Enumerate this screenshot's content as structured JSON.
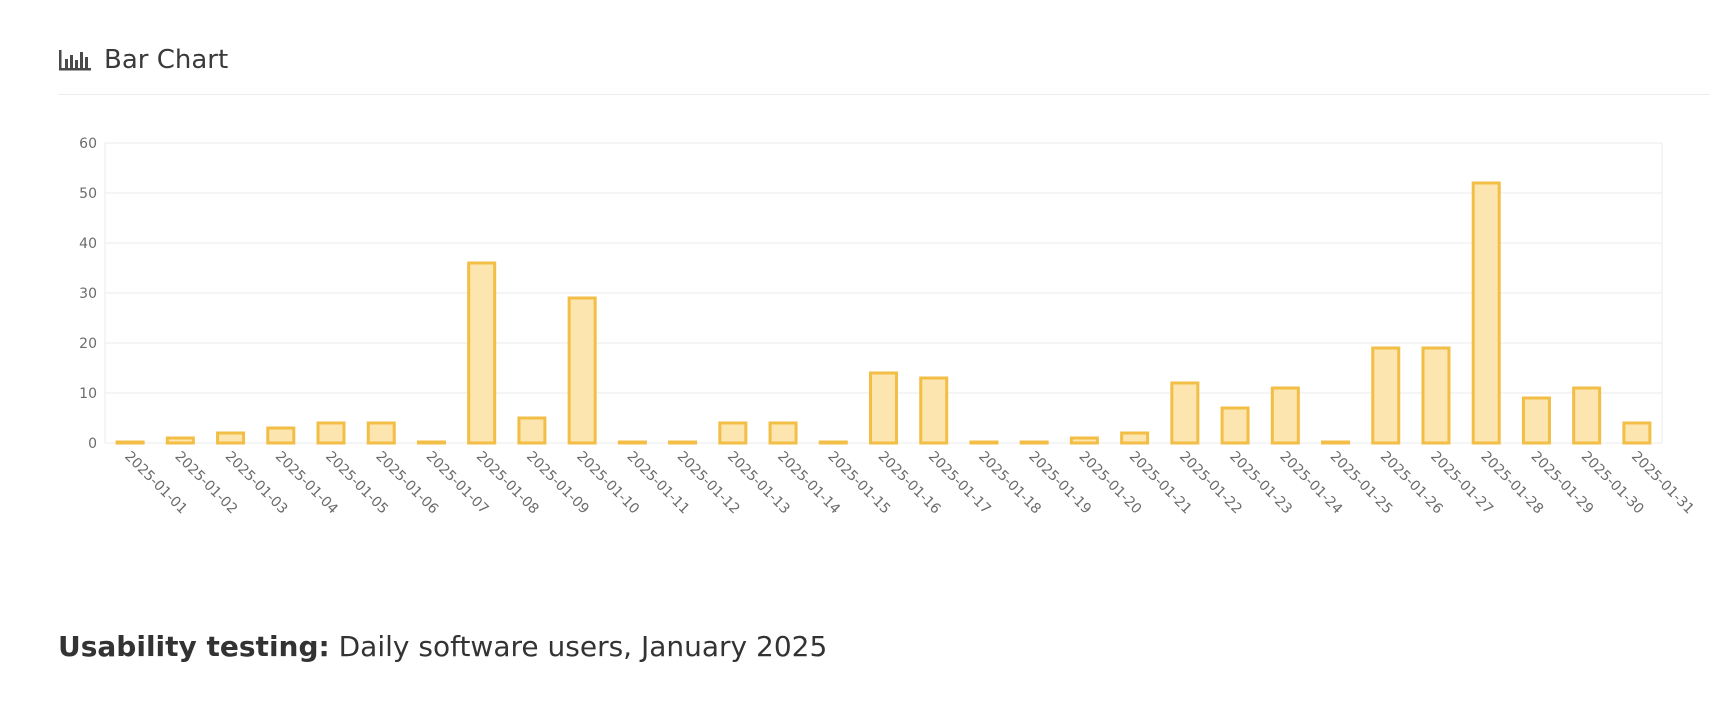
{
  "header": {
    "title": "Bar Chart",
    "icon": "bar-chart-icon"
  },
  "caption": {
    "bold": "Usability testing:",
    "text": " Daily software users, January 2025"
  },
  "colors": {
    "bar_fill": "#fce5ae",
    "bar_stroke": "#f2be45",
    "grid": "#ebebeb",
    "tick_text": "#6b6b6b"
  },
  "chart_data": {
    "type": "bar",
    "title": "",
    "xlabel": "",
    "ylabel": "",
    "ylim": [
      0,
      60
    ],
    "yticks": [
      0,
      10,
      20,
      30,
      40,
      50,
      60
    ],
    "grid": true,
    "categories": [
      "2025-01-01",
      "2025-01-02",
      "2025-01-03",
      "2025-01-04",
      "2025-01-05",
      "2025-01-06",
      "2025-01-07",
      "2025-01-08",
      "2025-01-09",
      "2025-01-10",
      "2025-01-11",
      "2025-01-12",
      "2025-01-13",
      "2025-01-14",
      "2025-01-15",
      "2025-01-16",
      "2025-01-17",
      "2025-01-18",
      "2025-01-19",
      "2025-01-20",
      "2025-01-21",
      "2025-01-22",
      "2025-01-23",
      "2025-01-24",
      "2025-01-25",
      "2025-01-26",
      "2025-01-27",
      "2025-01-28",
      "2025-01-29",
      "2025-01-30",
      "2025-01-31"
    ],
    "values": [
      0,
      1,
      2,
      3,
      4,
      4,
      0,
      36,
      5,
      29,
      0,
      0,
      4,
      4,
      0,
      14,
      13,
      0,
      0,
      1,
      2,
      12,
      7,
      11,
      0,
      19,
      19,
      52,
      9,
      11,
      4
    ]
  }
}
